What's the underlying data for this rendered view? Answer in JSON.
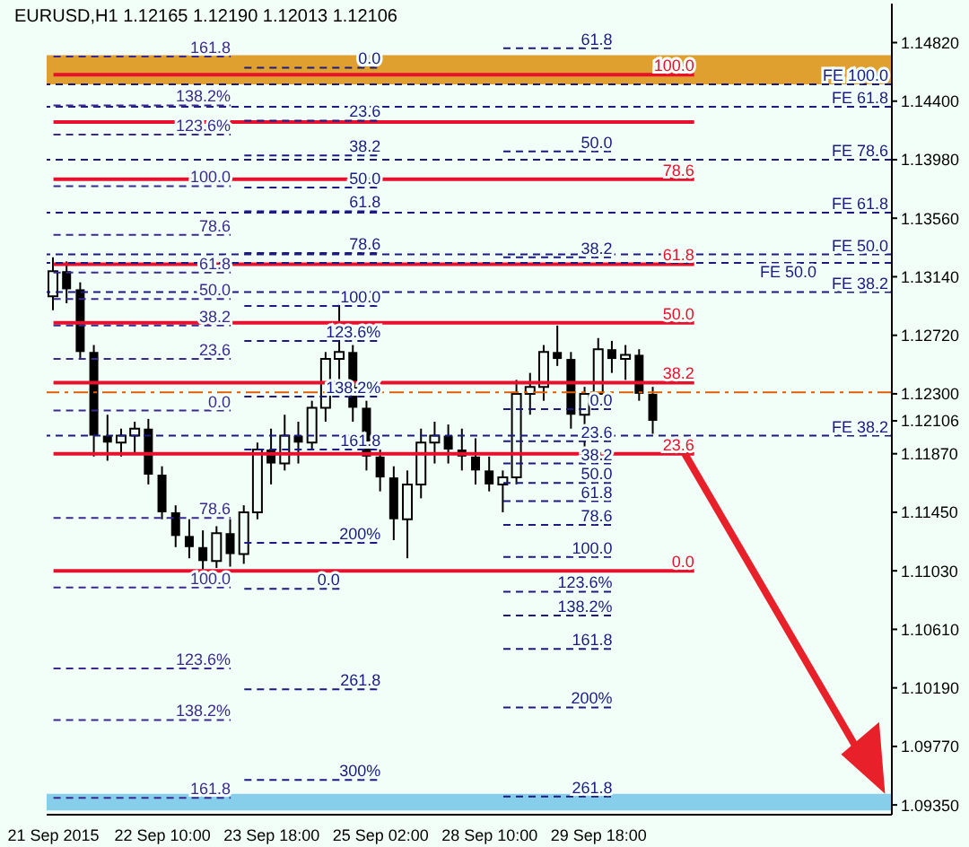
{
  "chart_data": {
    "type": "candlestick",
    "title": "EURUSD,H1  1.12165 1.12190 1.12013 1.12106",
    "categories": [
      "21 Sep 2015",
      null,
      null,
      null,
      null,
      null,
      null,
      null,
      "22 Sep 10:00",
      null,
      null,
      null,
      null,
      null,
      null,
      null,
      "23 Sep 18:00",
      null,
      null,
      null,
      null,
      null,
      null,
      null,
      "25 Sep 02:00",
      null,
      null,
      null,
      null,
      null,
      null,
      null,
      "28 Sep 10:00",
      null,
      null,
      null,
      null,
      null,
      null,
      null,
      "29 Sep 18:00",
      null,
      null,
      null,
      null,
      null,
      null,
      null,
      null,
      null,
      null,
      null,
      null,
      null,
      null,
      null,
      null,
      null,
      null,
      null,
      null,
      null
    ],
    "ohlc": [
      [
        1.13,
        1.1328,
        1.129,
        1.1318
      ],
      [
        1.1318,
        1.1325,
        1.1295,
        1.1305
      ],
      [
        1.1305,
        1.131,
        1.1255,
        1.126
      ],
      [
        1.126,
        1.1265,
        1.1185,
        1.12
      ],
      [
        1.12,
        1.1215,
        1.1182,
        1.1195
      ],
      [
        1.1195,
        1.1205,
        1.1185,
        1.12
      ],
      [
        1.12,
        1.121,
        1.1188,
        1.1205
      ],
      [
        1.1205,
        1.1212,
        1.1165,
        1.1172
      ],
      [
        1.1172,
        1.1178,
        1.114,
        1.1145
      ],
      [
        1.1145,
        1.115,
        1.112,
        1.1128
      ],
      [
        1.1128,
        1.114,
        1.1112,
        1.112
      ],
      [
        1.112,
        1.1132,
        1.1104,
        1.111
      ],
      [
        1.111,
        1.1135,
        1.1105,
        1.113
      ],
      [
        1.113,
        1.114,
        1.1106,
        1.1115
      ],
      [
        1.1115,
        1.115,
        1.1108,
        1.1145
      ],
      [
        1.1145,
        1.1195,
        1.114,
        1.119
      ],
      [
        1.119,
        1.1205,
        1.1165,
        1.118
      ],
      [
        1.118,
        1.1215,
        1.1175,
        1.12
      ],
      [
        1.12,
        1.121,
        1.118,
        1.1195
      ],
      [
        1.1195,
        1.1225,
        1.119,
        1.122
      ],
      [
        1.122,
        1.126,
        1.121,
        1.1255
      ],
      [
        1.1255,
        1.1294,
        1.124,
        1.126
      ],
      [
        1.126,
        1.1265,
        1.121,
        1.122
      ],
      [
        1.122,
        1.1225,
        1.1175,
        1.1185
      ],
      [
        1.1185,
        1.119,
        1.116,
        1.117
      ],
      [
        1.117,
        1.1178,
        1.1125,
        1.114
      ],
      [
        1.114,
        1.1175,
        1.1112,
        1.1165
      ],
      [
        1.1165,
        1.1205,
        1.1155,
        1.1195
      ],
      [
        1.1195,
        1.121,
        1.118,
        1.12
      ],
      [
        1.12,
        1.1208,
        1.118,
        1.119
      ],
      [
        1.119,
        1.1205,
        1.1175,
        1.1185
      ],
      [
        1.1185,
        1.1198,
        1.1165,
        1.1175
      ],
      [
        1.1175,
        1.1185,
        1.116,
        1.1165
      ],
      [
        1.1165,
        1.1175,
        1.1145,
        1.117
      ],
      [
        1.117,
        1.124,
        1.1165,
        1.123
      ],
      [
        1.123,
        1.1245,
        1.1215,
        1.1235
      ],
      [
        1.1235,
        1.1265,
        1.1225,
        1.126
      ],
      [
        1.126,
        1.1279,
        1.125,
        1.1255
      ],
      [
        1.1255,
        1.126,
        1.1205,
        1.1215
      ],
      [
        1.1215,
        1.1235,
        1.1191,
        1.123
      ],
      [
        1.123,
        1.127,
        1.1225,
        1.1262
      ],
      [
        1.1262,
        1.1268,
        1.1245,
        1.1255
      ],
      [
        1.1255,
        1.1265,
        1.124,
        1.1258
      ],
      [
        1.1258,
        1.1262,
        1.1225,
        1.123
      ],
      [
        1.123,
        1.1235,
        1.12013,
        1.12106
      ],
      null,
      null,
      null,
      null,
      null,
      null,
      null,
      null,
      null,
      null,
      null,
      null,
      null,
      null,
      null,
      null,
      null
    ],
    "color": "#000000",
    "ylim": [
      1.0928,
      1.151
    ],
    "yticks": [
      {
        "value": 1.1482,
        "label": "1.14820"
      },
      {
        "value": 1.144,
        "label": "1.14400"
      },
      {
        "value": 1.1398,
        "label": "1.13980"
      },
      {
        "value": 1.1356,
        "label": "1.13560"
      },
      {
        "value": 1.1314,
        "label": "1.13140"
      },
      {
        "value": 1.1272,
        "label": "1.12720"
      },
      {
        "value": 1.123,
        "label": "1.12300"
      },
      {
        "value": 1.1187,
        "label": "1.11870"
      },
      1.12106,
      {
        "value": 1.1145,
        "label": "1.11450"
      },
      {
        "value": 1.1103,
        "label": "1.11030"
      },
      {
        "value": 1.1061,
        "label": "1.10610"
      },
      {
        "value": 1.1019,
        "label": "1.10190"
      },
      {
        "value": 1.0977,
        "label": "1.09770"
      },
      {
        "value": 1.0935,
        "label": "1.09350"
      }
    ],
    "ref_lines": [
      {
        "axis": "y",
        "value": 1.1459,
        "color": "#e8112d",
        "line_style": "solid"
      },
      {
        "axis": "y",
        "value": 1.1425,
        "color": "#e8112d",
        "line_style": "solid"
      },
      {
        "axis": "y",
        "value": 1.1384,
        "color": "#e8112d",
        "line_style": "solid"
      },
      {
        "axis": "y",
        "value": 1.1323,
        "color": "#e8112d",
        "line_style": "solid"
      },
      {
        "axis": "y",
        "value": 1.1281,
        "color": "#e8112d",
        "line_style": "solid"
      },
      {
        "axis": "y",
        "value": 1.1238,
        "color": "#e8112d",
        "line_style": "solid"
      },
      {
        "axis": "y",
        "value": 1.1187,
        "color": "#e8112d",
        "line_style": "solid"
      },
      {
        "axis": "y",
        "value": 1.1103,
        "color": "#e8112d",
        "line_style": "solid"
      },
      {
        "axis": "y",
        "value": 1.1231,
        "color": "#e06000",
        "line_style": "dashdot"
      },
      {
        "axis": "y",
        "value": 1.1452,
        "label": "FE 100.0",
        "color": "#1a1a80",
        "line_style": "dashed"
      },
      {
        "axis": "y",
        "value": 1.1436,
        "label": "FE 61.8",
        "color": "#1a1a80",
        "line_style": "dashed"
      },
      {
        "axis": "y",
        "value": 1.1398,
        "label": "FE 78.6",
        "color": "#1a1a80",
        "line_style": "dashed"
      },
      {
        "axis": "y",
        "value": 1.136,
        "label": "FE 61.8",
        "color": "#1a1a80",
        "line_style": "dashed"
      },
      {
        "axis": "y",
        "value": 1.133,
        "label": "FE 50.0",
        "color": "#1a1a80",
        "line_style": "dashed"
      },
      {
        "axis": "y",
        "value": 1.1324,
        "label": "FE 50.0",
        "color": "#1a1a80",
        "line_style": "dashed"
      },
      {
        "axis": "y",
        "value": 1.1303,
        "label": "FE 38.2",
        "color": "#1a1a80",
        "line_style": "dashed"
      },
      {
        "axis": "y",
        "value": 1.12,
        "label": "FE 38.2",
        "color": "#1a1a80",
        "line_style": "dashed"
      },
      {
        "axis": "y",
        "value": 1.1472,
        "color": "#3a2a90",
        "line_style": "dashed"
      },
      {
        "axis": "y",
        "value": 1.1437,
        "color": "#3a2a90",
        "line_style": "dashed"
      },
      {
        "axis": "y",
        "value": 1.1416,
        "color": "#3a2a90",
        "line_style": "dashed"
      },
      {
        "axis": "y",
        "value": 1.1379,
        "color": "#3a2a90",
        "line_style": "dashed"
      },
      {
        "axis": "y",
        "value": 1.1344,
        "color": "#3a2a90",
        "line_style": "dashed"
      },
      {
        "axis": "y",
        "value": 1.1317,
        "color": "#3a2a90",
        "line_style": "dashed"
      },
      {
        "axis": "y",
        "value": 1.1298,
        "color": "#3a2a90",
        "line_style": "dashed"
      },
      {
        "axis": "y",
        "value": 1.1279,
        "color": "#3a2a90",
        "line_style": "dashed"
      },
      {
        "axis": "y",
        "value": 1.1255,
        "color": "#3a2a90",
        "line_style": "dashed"
      },
      {
        "axis": "y",
        "value": 1.1218,
        "color": "#3a2a90",
        "line_style": "dashed"
      },
      {
        "axis": "y",
        "value": 1.1141,
        "color": "#3a2a90",
        "line_style": "dashed"
      },
      {
        "axis": "y",
        "value": 1.1091,
        "color": "#3a2a90",
        "line_style": "dashed"
      },
      {
        "axis": "y",
        "value": 1.1033,
        "color": "#3a2a90",
        "line_style": "dashed"
      },
      {
        "axis": "y",
        "value": 1.0996,
        "color": "#3a2a90",
        "line_style": "dashed"
      },
      {
        "axis": "y",
        "value": 1.094,
        "color": "#3a2a90",
        "line_style": "dashed"
      },
      {
        "axis": "y",
        "value": 1.1464,
        "color": "#1a1a80",
        "line_style": "dashed"
      },
      {
        "axis": "y",
        "value": 1.1426,
        "color": "#1a1a80",
        "line_style": "dashed"
      },
      {
        "axis": "y",
        "value": 1.1401,
        "color": "#1a1a80",
        "line_style": "dashed"
      },
      {
        "axis": "y",
        "value": 1.1378,
        "color": "#1a1a80",
        "line_style": "dashed"
      },
      {
        "axis": "y",
        "value": 1.1361,
        "color": "#1a1a80",
        "line_style": "dashed"
      },
      {
        "axis": "y",
        "value": 1.1331,
        "color": "#1a1a80",
        "line_style": "dashed"
      },
      {
        "axis": "y",
        "value": 1.1293,
        "color": "#1a1a80",
        "line_style": "dashed"
      },
      {
        "axis": "y",
        "value": 1.1268,
        "color": "#1a1a80",
        "line_style": "dashed"
      },
      {
        "axis": "y",
        "value": 1.1228,
        "color": "#1a1a80",
        "line_style": "dashed"
      },
      {
        "axis": "y",
        "value": 1.119,
        "color": "#1a1a80",
        "line_style": "dashed"
      },
      {
        "axis": "y",
        "value": 1.1123,
        "color": "#1a1a80",
        "line_style": "dashed"
      },
      {
        "axis": "y",
        "value": 1.1018,
        "color": "#1a1a80",
        "line_style": "dashed"
      },
      {
        "axis": "y",
        "value": 1.0953,
        "color": "#1a1a80",
        "line_style": "dashed"
      },
      {
        "axis": "y",
        "value": 1.1219,
        "color": "#1a1a80",
        "line_style": "dashed"
      },
      {
        "axis": "y",
        "value": 1.1196,
        "color": "#1a1a80",
        "line_style": "dashed"
      },
      {
        "axis": "y",
        "value": 1.118,
        "color": "#1a1a80",
        "line_style": "dashed"
      },
      {
        "axis": "y",
        "value": 1.1166,
        "color": "#1a1a80",
        "line_style": "dashed"
      },
      {
        "axis": "y",
        "value": 1.1153,
        "color": "#1a1a80",
        "line_style": "dashed"
      },
      {
        "axis": "y",
        "value": 1.1136,
        "color": "#1a1a80",
        "line_style": "dashed"
      },
      {
        "axis": "y",
        "value": 1.1113,
        "color": "#1a1a80",
        "line_style": "dashed"
      },
      {
        "axis": "y",
        "value": 1.1088,
        "color": "#1a1a80",
        "line_style": "dashed"
      },
      {
        "axis": "y",
        "value": 1.1071,
        "color": "#1a1a80",
        "line_style": "dashed"
      },
      {
        "axis": "y",
        "value": 1.1047,
        "color": "#1a1a80",
        "line_style": "dashed"
      },
      {
        "axis": "y",
        "value": 1.1005,
        "color": "#1a1a80",
        "line_style": "dashed"
      },
      {
        "axis": "y",
        "value": 1.0941,
        "color": "#1a1a80",
        "line_style": "dashed"
      },
      {
        "axis": "y",
        "value": 1.1478,
        "color": "#1a1a80",
        "line_style": "dashed"
      },
      {
        "axis": "y",
        "value": 1.1404,
        "color": "#1a1a80",
        "line_style": "dashed"
      },
      {
        "axis": "y",
        "value": 1.1328,
        "color": "#1a1a80",
        "line_style": "dashed"
      },
      {
        "axis": "y",
        "value": 1.109,
        "color": "#1a1a80",
        "line_style": "dashed"
      }
    ],
    "bands": [
      {
        "axis": "y",
        "from": 1.1452,
        "to": 1.1473,
        "color": "#e0a030"
      },
      {
        "axis": "y",
        "from": 1.0931,
        "to": 1.0943,
        "color": "#87ceeb"
      }
    ],
    "annotations": [
      {
        "text": "100.0",
        "y": 1.1459
      },
      {
        "text": "78.6",
        "y": 1.1384
      },
      {
        "text": "61.8",
        "y": 1.1323
      },
      {
        "text": "50.0",
        "y": 1.1281
      },
      {
        "text": "38.2",
        "y": 1.1238
      },
      {
        "text": "23.6",
        "y": 1.1187
      },
      {
        "text": "0.0",
        "y": 1.1103
      },
      {
        "text": "161.8",
        "y": 1.1472
      },
      {
        "text": "138.2%",
        "y": 1.1437
      },
      {
        "text": "123.6%",
        "y": 1.1416
      },
      {
        "text": "100.0",
        "y": 1.1379
      },
      {
        "text": "78.6",
        "y": 1.1344
      },
      {
        "text": "61.8",
        "y": 1.1317
      },
      {
        "text": "50.0",
        "y": 1.1298
      },
      {
        "text": "38.2",
        "y": 1.1279
      },
      {
        "text": "23.6",
        "y": 1.1255
      },
      {
        "text": "0.0",
        "y": 1.1218
      },
      {
        "text": "78.6",
        "y": 1.1141
      },
      {
        "text": "100.0",
        "y": 1.1091
      },
      {
        "text": "123.6%",
        "y": 1.1033
      },
      {
        "text": "138.2%",
        "y": 1.0996
      },
      {
        "text": "161.8",
        "y": 1.094
      },
      {
        "text": "0.0",
        "y": 1.1464
      },
      {
        "text": "23.6",
        "y": 1.1426
      },
      {
        "text": "38.2",
        "y": 1.1401
      },
      {
        "text": "50.0",
        "y": 1.1378
      },
      {
        "text": "61.8",
        "y": 1.1361
      },
      {
        "text": "78.6",
        "y": 1.1331
      },
      {
        "text": "100.0",
        "y": 1.1293
      },
      {
        "text": "123.6%",
        "y": 1.1268
      },
      {
        "text": "138.2%",
        "y": 1.1228
      },
      {
        "text": "161.8",
        "y": 1.119
      },
      {
        "text": "200%",
        "y": 1.1123
      },
      {
        "text": "261.8",
        "y": 1.1018
      },
      {
        "text": "300%",
        "y": 1.0953
      },
      {
        "text": "0.0",
        "y": 1.1219
      },
      {
        "text": "23.6",
        "y": 1.1196
      },
      {
        "text": "38.2",
        "y": 1.118
      },
      {
        "text": "50.0",
        "y": 1.1166
      },
      {
        "text": "61.8",
        "y": 1.1153
      },
      {
        "text": "78.6",
        "y": 1.1136
      },
      {
        "text": "100.0",
        "y": 1.1113
      },
      {
        "text": "123.6%",
        "y": 1.1088
      },
      {
        "text": "138.2%",
        "y": 1.1071
      },
      {
        "text": "161.8",
        "y": 1.1047
      },
      {
        "text": "200%",
        "y": 1.1005
      },
      {
        "text": "261.8",
        "y": 1.0941
      },
      {
        "text": "61.8",
        "y": 1.1478
      },
      {
        "text": "50.0",
        "y": 1.1404
      },
      {
        "text": "38.2",
        "y": 1.1328
      },
      {
        "text": "0.0",
        "y": 1.109
      }
    ]
  }
}
